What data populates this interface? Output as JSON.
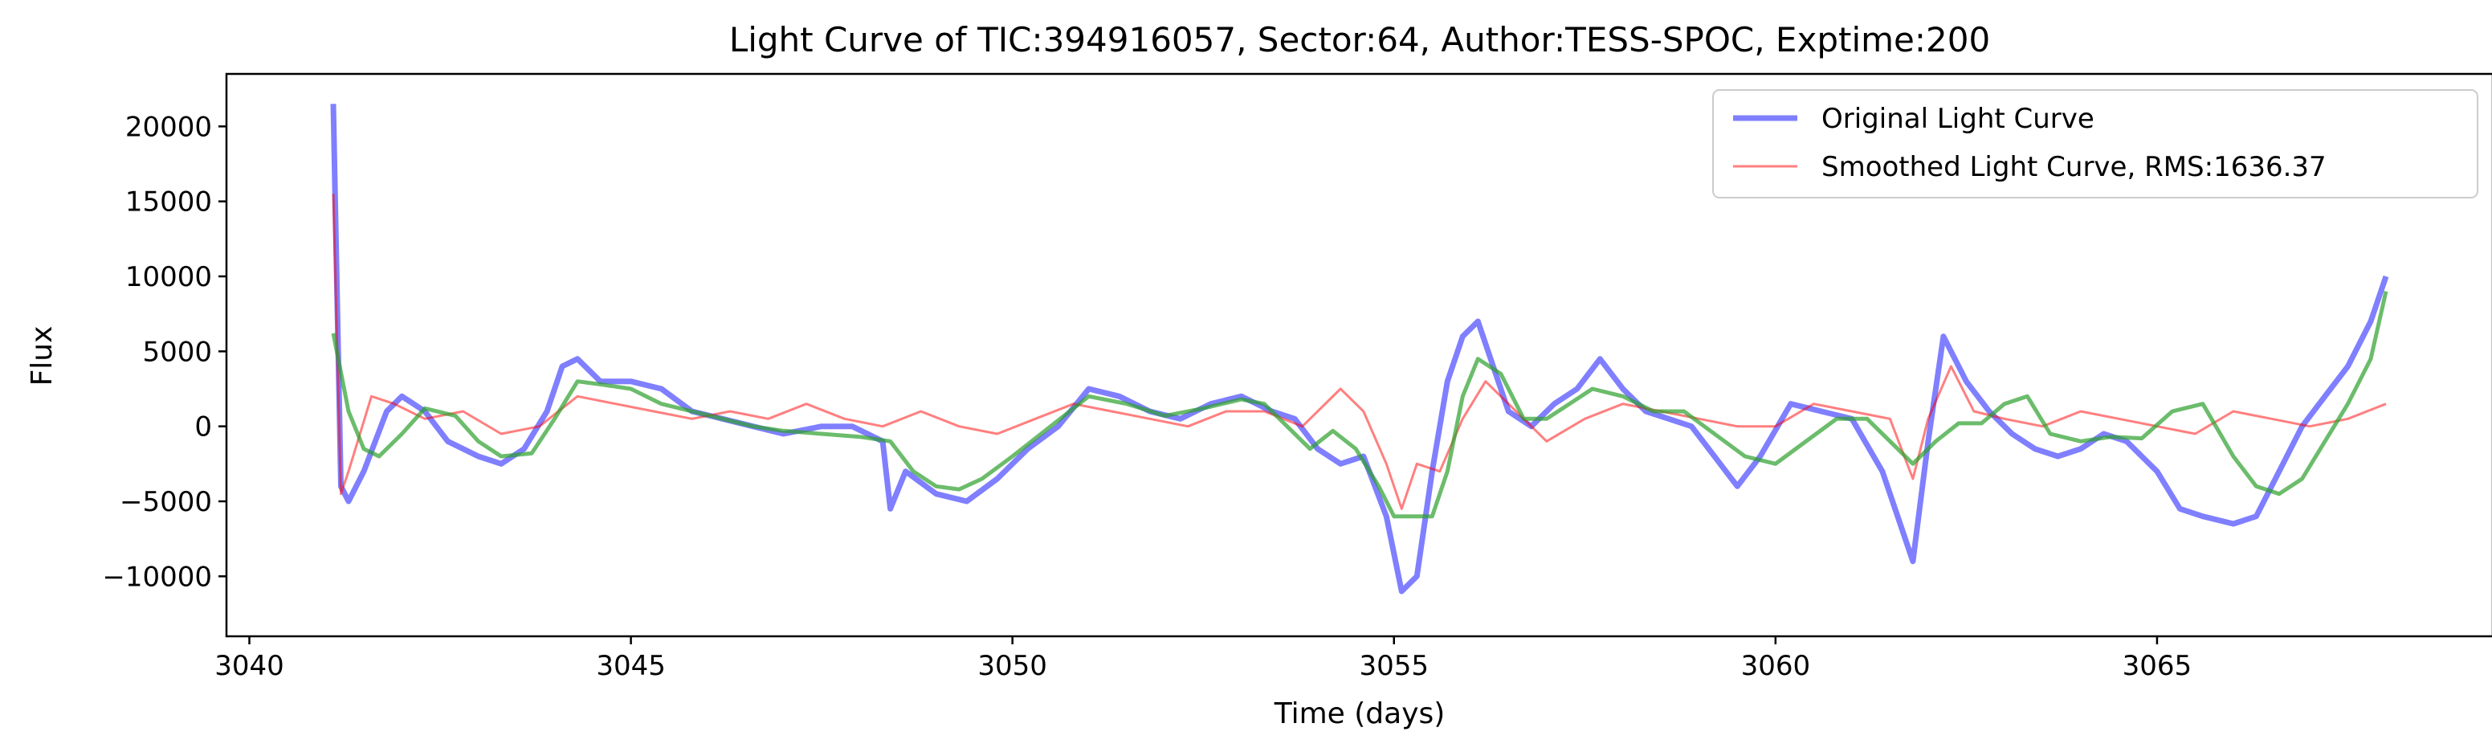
{
  "chart_data": {
    "type": "line",
    "title": "Light Curve of TIC:394916057, Sector:64, Author:TESS-SPOC, Exptime:200",
    "xlabel": "Time (days)",
    "ylabel": "Flux",
    "xlim": [
      3039.7,
      3069.4
    ],
    "ylim": [
      -14000,
      23500
    ],
    "x_ticks": [
      3040,
      3045,
      3050,
      3055,
      3060,
      3065
    ],
    "x_tick_labels": [
      "3040",
      "3045",
      "3050",
      "3055",
      "3060",
      "3065"
    ],
    "y_ticks": [
      -10000,
      -5000,
      0,
      5000,
      10000,
      15000,
      20000
    ],
    "y_tick_labels": [
      "−10000",
      "−5000",
      "0",
      "5000",
      "10000",
      "15000",
      "20000"
    ],
    "grid": false,
    "legend_position": "top-right",
    "series": [
      {
        "name": "Original Light Curve",
        "color": "#0000ff",
        "x": [
          3041.1,
          3041.2,
          3041.3,
          3041.5,
          3041.8,
          3042.0,
          3042.3,
          3042.6,
          3043.0,
          3043.3,
          3043.6,
          3043.9,
          3044.1,
          3044.3,
          3044.6,
          3045.0,
          3045.4,
          3045.8,
          3046.2,
          3046.6,
          3047.0,
          3047.5,
          3047.9,
          3048.3,
          3048.4,
          3048.6,
          3049.0,
          3049.4,
          3049.8,
          3050.2,
          3050.6,
          3051.0,
          3051.4,
          3051.8,
          3052.2,
          3052.6,
          3053.0,
          3053.4,
          3053.7,
          3054.0,
          3054.3,
          3054.6,
          3054.9,
          3055.1,
          3055.3,
          3055.5,
          3055.7,
          3055.9,
          3056.1,
          3056.3,
          3056.5,
          3056.8,
          3057.1,
          3057.4,
          3057.7,
          3058.0,
          3058.3,
          3058.6,
          3058.9,
          3059.2,
          3059.5,
          3059.8,
          3060.2,
          3060.6,
          3061.0,
          3061.4,
          3061.8,
          3062.0,
          3062.2,
          3062.5,
          3062.8,
          3063.1,
          3063.4,
          3063.7,
          3064.0,
          3064.3,
          3064.6,
          3065.0,
          3065.3,
          3065.6,
          3066.0,
          3066.3,
          3066.6,
          3066.9,
          3067.2,
          3067.5,
          3067.8,
          3068.0
        ],
        "y": [
          21500,
          -4000,
          -5000,
          -3000,
          1000,
          2000,
          1000,
          -1000,
          -2000,
          -2500,
          -1500,
          1000,
          4000,
          4500,
          3000,
          3000,
          2500,
          1000,
          500,
          0,
          -500,
          0,
          0,
          -1000,
          -5500,
          -3000,
          -4500,
          -5000,
          -3500,
          -1500,
          0,
          2500,
          2000,
          1000,
          500,
          1500,
          2000,
          1000,
          500,
          -1500,
          -2500,
          -2000,
          -6000,
          -11000,
          -10000,
          -3000,
          3000,
          6000,
          7000,
          4000,
          1000,
          0,
          1500,
          2500,
          4500,
          2500,
          1000,
          500,
          0,
          -2000,
          -4000,
          -2000,
          1500,
          1000,
          500,
          -3000,
          -9000,
          -1000,
          6000,
          3000,
          1000,
          -500,
          -1500,
          -2000,
          -1500,
          -500,
          -1000,
          -3000,
          -5500,
          -6000,
          -6500,
          -6000,
          -3000,
          0,
          2000,
          4000,
          7000,
          10000
        ]
      },
      {
        "name": "Smoothed Light Curve, RMS:1636.37",
        "color": "#ff0000",
        "x": [
          3041.1,
          3041.2,
          3041.3,
          3041.6,
          3041.9,
          3042.3,
          3042.8,
          3043.3,
          3043.8,
          3044.3,
          3044.8,
          3045.3,
          3045.8,
          3046.3,
          3046.8,
          3047.3,
          3047.8,
          3048.3,
          3048.8,
          3049.3,
          3049.8,
          3050.3,
          3050.8,
          3051.3,
          3051.8,
          3052.3,
          3052.8,
          3053.3,
          3053.8,
          3054.3,
          3054.6,
          3054.9,
          3055.1,
          3055.3,
          3055.6,
          3055.9,
          3056.2,
          3056.6,
          3057.0,
          3057.5,
          3058.0,
          3058.5,
          3059.0,
          3059.5,
          3060.0,
          3060.5,
          3061.0,
          3061.5,
          3061.8,
          3062.0,
          3062.3,
          3062.6,
          3063.0,
          3063.5,
          3064.0,
          3064.5,
          3065.0,
          3065.5,
          3066.0,
          3066.5,
          3067.0,
          3067.5,
          3068.0
        ],
        "y": [
          15500,
          -4500,
          -3000,
          2000,
          1500,
          500,
          1000,
          -500,
          0,
          2000,
          1500,
          1000,
          500,
          1000,
          500,
          1500,
          500,
          0,
          1000,
          0,
          -500,
          500,
          1500,
          1000,
          500,
          0,
          1000,
          1000,
          0,
          2500,
          1000,
          -2500,
          -5500,
          -2500,
          -3000,
          500,
          3000,
          1000,
          -1000,
          500,
          1500,
          1000,
          500,
          0,
          0,
          1500,
          1000,
          500,
          -3500,
          500,
          4000,
          1000,
          500,
          0,
          1000,
          500,
          0,
          -500,
          1000,
          500,
          0,
          500,
          1500
        ]
      },
      {
        "name": "",
        "color": "#2ca02c",
        "x": [
          3041.1,
          3041.3,
          3041.5,
          3041.7,
          3042.0,
          3042.3,
          3042.7,
          3043.0,
          3043.3,
          3043.7,
          3044.0,
          3044.3,
          3044.6,
          3045.0,
          3045.4,
          3045.8,
          3046.2,
          3046.6,
          3047.0,
          3047.5,
          3048.0,
          3048.4,
          3048.7,
          3049.0,
          3049.3,
          3049.6,
          3050.0,
          3050.5,
          3051.0,
          3051.5,
          3052.0,
          3052.5,
          3053.0,
          3053.3,
          3053.6,
          3053.9,
          3054.2,
          3054.5,
          3054.8,
          3055.0,
          3055.2,
          3055.5,
          3055.7,
          3055.9,
          3056.1,
          3056.4,
          3056.7,
          3057.0,
          3057.3,
          3057.6,
          3058.0,
          3058.4,
          3058.8,
          3059.2,
          3059.6,
          3060.0,
          3060.4,
          3060.8,
          3061.2,
          3061.5,
          3061.8,
          3062.1,
          3062.4,
          3062.7,
          3063.0,
          3063.3,
          3063.6,
          3064.0,
          3064.4,
          3064.8,
          3065.2,
          3065.6,
          3066.0,
          3066.3,
          3066.6,
          3066.9,
          3067.2,
          3067.5,
          3067.8,
          3068.0
        ],
        "y": [
          6200,
          1000,
          -1500,
          -2000,
          -500,
          1200,
          700,
          -1000,
          -2000,
          -1800,
          500,
          3000,
          2800,
          2500,
          1500,
          1000,
          500,
          0,
          -300,
          -500,
          -700,
          -1000,
          -3000,
          -4000,
          -4200,
          -3500,
          -2000,
          0,
          2000,
          1500,
          700,
          1200,
          1800,
          1500,
          0,
          -1500,
          -300,
          -1500,
          -4000,
          -6000,
          -6000,
          -6000,
          -3000,
          2000,
          4500,
          3500,
          500,
          500,
          1500,
          2500,
          2000,
          1000,
          1000,
          -500,
          -2000,
          -2500,
          -1000,
          500,
          500,
          -1000,
          -2500,
          -1000,
          200,
          200,
          1500,
          2000,
          -500,
          -1000,
          -700,
          -800,
          1000,
          1500,
          -2000,
          -4000,
          -4500,
          -3500,
          -1000,
          1500,
          4500,
          9000
        ]
      }
    ]
  }
}
